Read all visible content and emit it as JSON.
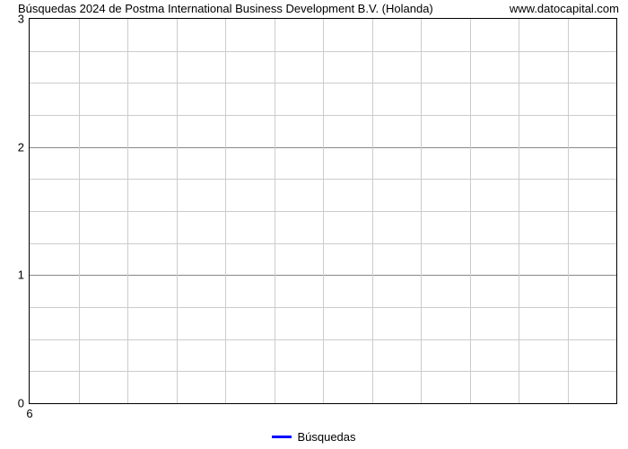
{
  "title_left": "Búsquedas 2024 de Postma International Business Development B.V. (Holanda)",
  "title_right": "www.datocapital.com",
  "title_fontsize": 13,
  "watermark_fontsize": 13,
  "chart": {
    "type": "line",
    "series_name": "Búsquedas",
    "series_color": "#0000ff",
    "series_line_width": 3,
    "data_points": [],
    "ylim": [
      0,
      3
    ],
    "xlim_label": "6",
    "ytick_values": [
      0,
      1,
      2,
      3
    ],
    "minor_rows": 12,
    "minor_cols": 12,
    "background_color": "#ffffff",
    "grid_major_color": "#888888",
    "grid_minor_color": "#cccccc",
    "axis_color": "#000000",
    "tick_fontsize": 13,
    "legend_fontsize": 13,
    "legend_position": "bottom-center",
    "legend_swatch_width": 22
  }
}
